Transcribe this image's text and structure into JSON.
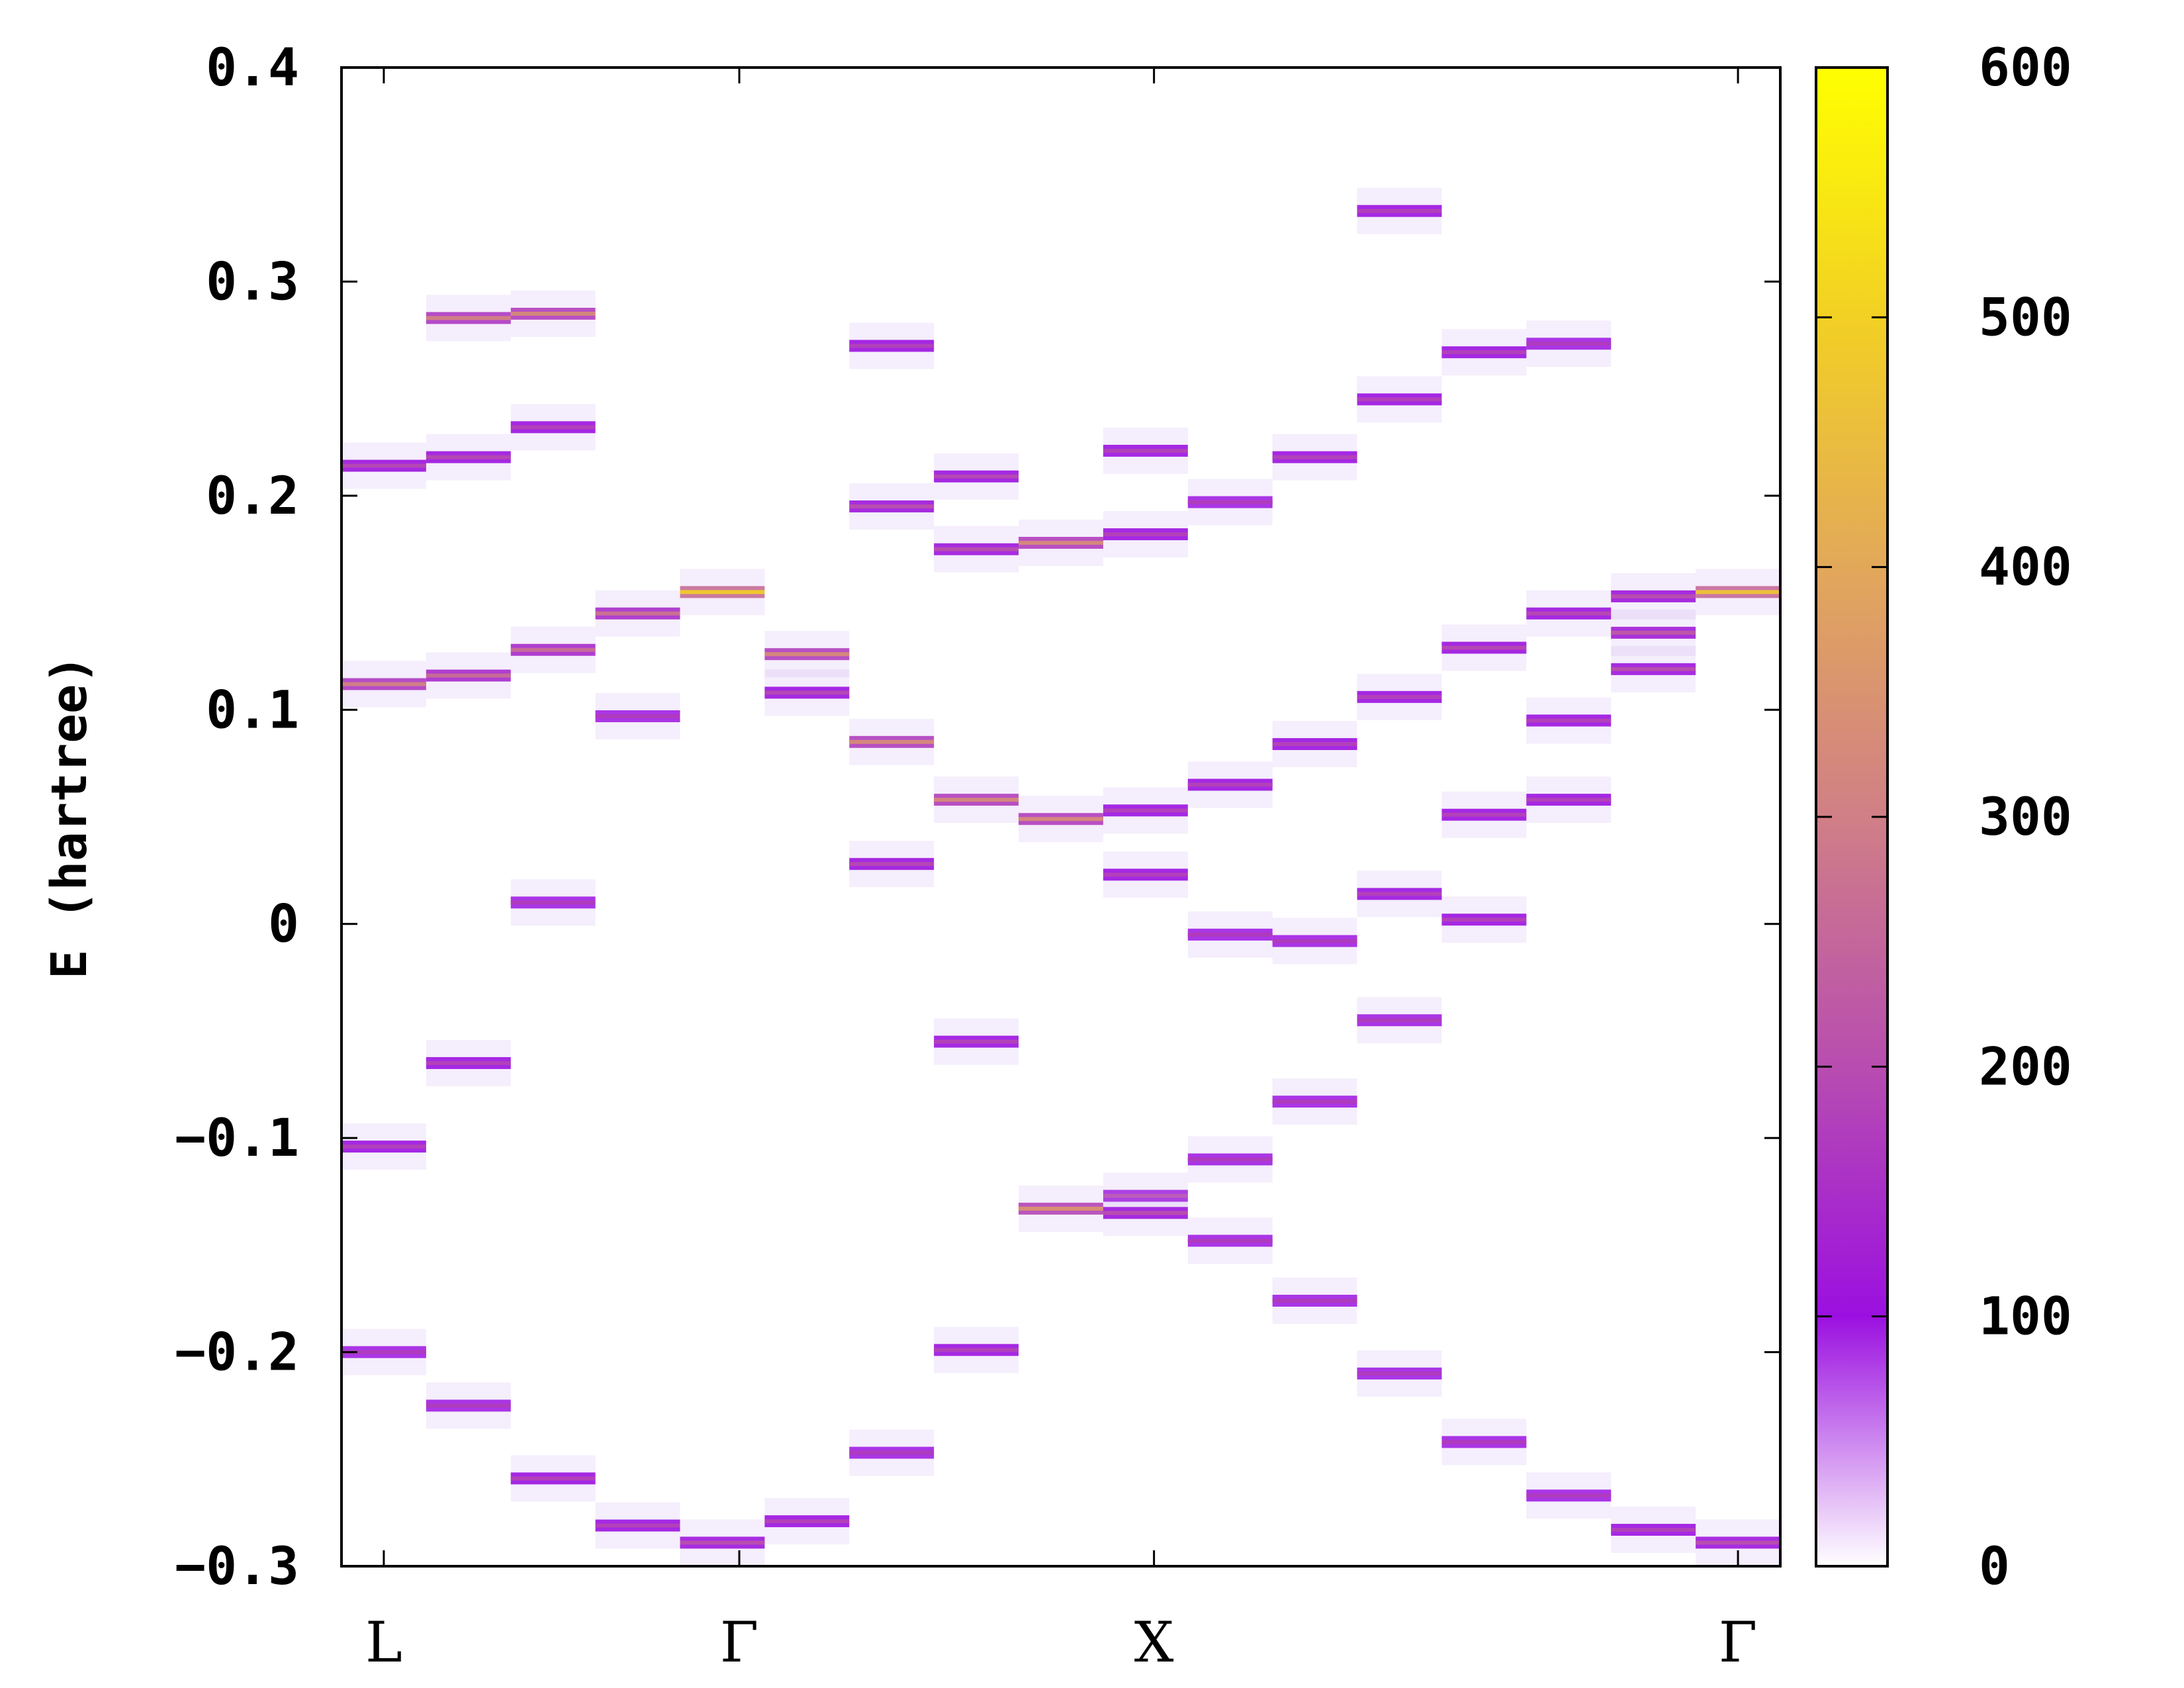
{
  "chart_data": {
    "type": "heatmap",
    "ylabel": "E (hartree)",
    "ylim": [
      -0.3,
      0.4
    ],
    "yticks": [
      "0.4",
      "0.3",
      "0.2",
      "0.1",
      "0",
      "−0.1",
      "−0.2",
      "−0.3"
    ],
    "yticks_values": [
      0.4,
      0.3,
      0.2,
      0.1,
      0.0,
      -0.1,
      -0.2,
      -0.3
    ],
    "xlim": [
      -0.5,
      16.5
    ],
    "kpoint_labels": [
      {
        "label": "L",
        "x": 0
      },
      {
        "label": "Γ",
        "x": 4.2
      },
      {
        "label": "X",
        "x": 9.1
      },
      {
        "label": "Γ",
        "x": 16
      }
    ],
    "colorbar": {
      "min": 0,
      "max": 600,
      "ticks": [
        "0",
        "100",
        "200",
        "300",
        "400",
        "500",
        "600"
      ],
      "ticks_values": [
        0,
        100,
        200,
        300,
        400,
        500,
        600
      ],
      "colors": [
        "#ffffff",
        "#9b10e0",
        "#b84db0",
        "#d07f86",
        "#e2a85a",
        "#f2d024",
        "#ffff00"
      ]
    },
    "columns": [
      {
        "x": 0,
        "energies": [
          0.214,
          0.112,
          -0.104,
          -0.2
        ],
        "intensity": [
          190,
          300,
          180,
          170
        ]
      },
      {
        "x": 1,
        "energies": [
          0.283,
          0.218,
          0.116,
          -0.065,
          -0.225
        ],
        "intensity": [
          300,
          190,
          260,
          180,
          170
        ]
      },
      {
        "x": 2,
        "energies": [
          0.285,
          0.232,
          0.128,
          0.01,
          -0.259
        ],
        "intensity": [
          320,
          180,
          260,
          170,
          180
        ]
      },
      {
        "x": 3,
        "energies": [
          0.145,
          0.097,
          -0.281
        ],
        "intensity": [
          270,
          170,
          180
        ]
      },
      {
        "x": 4,
        "energies": [
          0.155,
          -0.289
        ],
        "intensity": [
          480,
          200
        ]
      },
      {
        "x": 5,
        "energies": [
          0.126,
          0.108,
          -0.279
        ],
        "intensity": [
          320,
          190,
          180
        ]
      },
      {
        "x": 6,
        "energies": [
          0.27,
          0.195,
          0.085,
          0.028,
          -0.247
        ],
        "intensity": [
          180,
          200,
          320,
          190,
          170
        ]
      },
      {
        "x": 7,
        "energies": [
          0.209,
          0.175,
          0.058,
          -0.055,
          -0.199
        ],
        "intensity": [
          190,
          200,
          320,
          180,
          180
        ]
      },
      {
        "x": 8,
        "energies": [
          0.178,
          0.049,
          -0.133
        ],
        "intensity": [
          320,
          320,
          340
        ]
      },
      {
        "x": 9,
        "energies": [
          0.221,
          0.182,
          0.053,
          0.023,
          -0.127,
          -0.135
        ],
        "intensity": [
          180,
          180,
          180,
          180,
          200,
          200
        ]
      },
      {
        "x": 10,
        "energies": [
          0.197,
          0.065,
          -0.005,
          -0.11,
          -0.148
        ],
        "intensity": [
          170,
          180,
          170,
          170,
          170
        ]
      },
      {
        "x": 11,
        "energies": [
          0.218,
          0.084,
          -0.008,
          -0.083,
          -0.176
        ],
        "intensity": [
          180,
          180,
          170,
          170,
          170
        ]
      },
      {
        "x": 12,
        "energies": [
          0.333,
          0.245,
          0.106,
          0.014,
          -0.045,
          -0.21
        ],
        "intensity": [
          180,
          180,
          180,
          180,
          170,
          170
        ]
      },
      {
        "x": 13,
        "energies": [
          0.267,
          0.129,
          0.051,
          0.002,
          -0.242
        ],
        "intensity": [
          180,
          190,
          180,
          180,
          170
        ]
      },
      {
        "x": 14,
        "energies": [
          0.271,
          0.145,
          0.095,
          0.058,
          -0.267
        ],
        "intensity": [
          170,
          190,
          180,
          180,
          170
        ]
      },
      {
        "x": 15,
        "energies": [
          0.153,
          0.136,
          0.119,
          -0.283
        ],
        "intensity": [
          200,
          220,
          200,
          180
        ]
      },
      {
        "x": 16,
        "energies": [
          0.155,
          -0.289
        ],
        "intensity": [
          460,
          200
        ]
      }
    ]
  }
}
